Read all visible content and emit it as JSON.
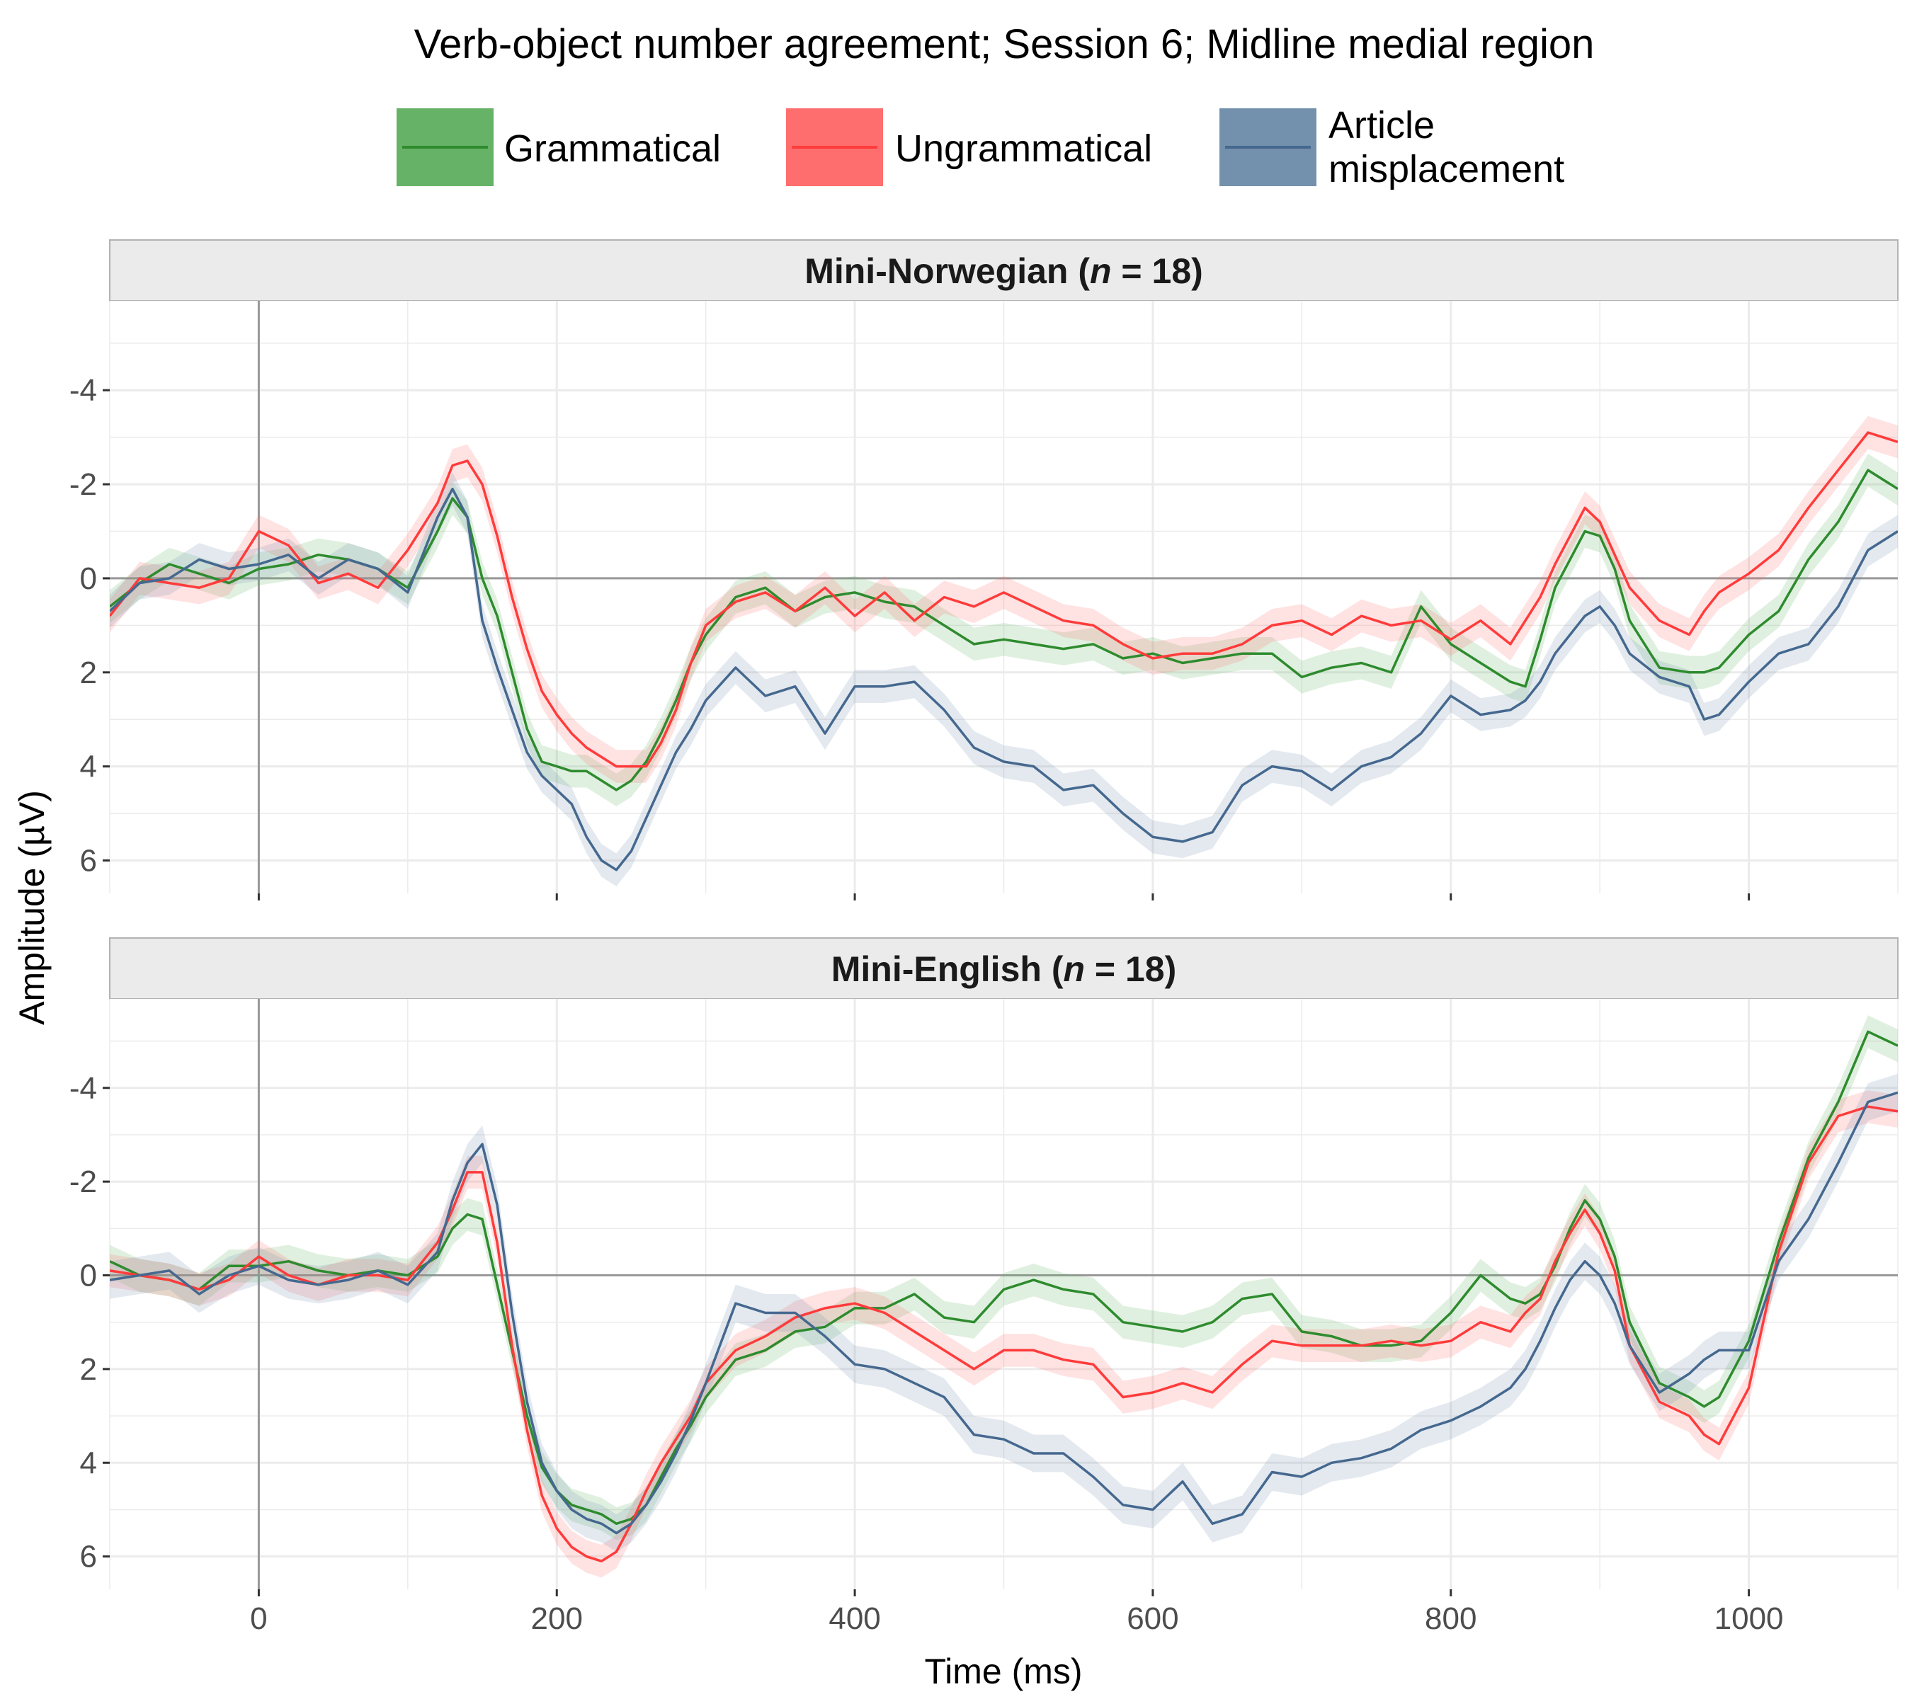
{
  "chart_data": {
    "type": "line",
    "title": "Verb-object number agreement; Session 6; Midline medial region",
    "xlabel": "Time (ms)",
    "ylabel": "Amplitude (µV)",
    "xlim": [
      -100,
      1100
    ],
    "ylim_display_top_to_bottom": [
      -5.9,
      6.7
    ],
    "y_axis_reversed": true,
    "x_ticks": [
      0,
      200,
      400,
      600,
      800,
      1000
    ],
    "y_ticks": [
      -4,
      -2,
      0,
      2,
      4,
      6
    ],
    "y_tick_labels": [
      "-4",
      "-2",
      "0",
      "2",
      "4",
      "6"
    ],
    "grid": true,
    "legend_position": "top",
    "legend": [
      {
        "key": "grammatical",
        "label": "Grammatical",
        "color": "#2e8b2e",
        "fill": "#66b266"
      },
      {
        "key": "ungrammatical",
        "label": "Ungrammatical",
        "color": "#ff3b3b",
        "fill": "#ff6e6e"
      },
      {
        "key": "article",
        "label": "Article misplacement",
        "label_lines": [
          "Article",
          "misplacement"
        ],
        "color": "#45688f",
        "fill": "#7390ad"
      }
    ],
    "x": [
      -100,
      -80,
      -60,
      -40,
      -20,
      0,
      20,
      40,
      60,
      80,
      100,
      120,
      130,
      140,
      150,
      160,
      170,
      180,
      190,
      200,
      210,
      220,
      230,
      240,
      250,
      260,
      270,
      280,
      290,
      300,
      320,
      340,
      360,
      380,
      400,
      420,
      440,
      460,
      480,
      500,
      520,
      540,
      560,
      580,
      600,
      620,
      640,
      660,
      680,
      700,
      720,
      740,
      760,
      780,
      800,
      820,
      840,
      850,
      860,
      870,
      880,
      890,
      900,
      910,
      920,
      940,
      960,
      970,
      980,
      1000,
      1020,
      1040,
      1060,
      1080,
      1100
    ],
    "panels": [
      {
        "strip_prefix": "Mini-Norwegian (",
        "strip_n": "n",
        "strip_suffix": " = 18)",
        "series": [
          {
            "key": "grammatical",
            "name": "Grammatical",
            "band": 0.35,
            "values": [
              0.6,
              0.1,
              -0.3,
              -0.1,
              0.1,
              -0.2,
              -0.3,
              -0.5,
              -0.4,
              -0.2,
              0.2,
              -1.0,
              -1.7,
              -1.3,
              0.0,
              0.8,
              2.0,
              3.2,
              3.9,
              4.0,
              4.1,
              4.1,
              4.3,
              4.5,
              4.3,
              3.9,
              3.3,
              2.6,
              1.8,
              1.2,
              0.4,
              0.2,
              0.7,
              0.4,
              0.3,
              0.5,
              0.6,
              1.0,
              1.4,
              1.3,
              1.4,
              1.5,
              1.4,
              1.7,
              1.6,
              1.8,
              1.7,
              1.6,
              1.6,
              2.1,
              1.9,
              1.8,
              2.0,
              0.6,
              1.4,
              1.8,
              2.2,
              2.3,
              1.3,
              0.2,
              -0.4,
              -1.0,
              -0.9,
              -0.2,
              0.9,
              1.9,
              2.0,
              2.0,
              1.9,
              1.2,
              0.7,
              -0.4,
              -1.2,
              -2.3,
              -1.9
            ]
          },
          {
            "key": "ungrammatical",
            "name": "Ungrammatical",
            "band": 0.35,
            "values": [
              0.8,
              0.0,
              0.1,
              0.2,
              0.0,
              -1.0,
              -0.7,
              0.1,
              -0.1,
              0.2,
              -0.6,
              -1.6,
              -2.4,
              -2.5,
              -2.0,
              -0.9,
              0.4,
              1.5,
              2.4,
              2.9,
              3.3,
              3.6,
              3.8,
              4.0,
              4.0,
              4.0,
              3.5,
              2.8,
              1.8,
              1.0,
              0.5,
              0.3,
              0.7,
              0.2,
              0.8,
              0.3,
              0.9,
              0.4,
              0.6,
              0.3,
              0.6,
              0.9,
              1.0,
              1.4,
              1.7,
              1.6,
              1.6,
              1.4,
              1.0,
              0.9,
              1.2,
              0.8,
              1.0,
              0.9,
              1.3,
              0.9,
              1.4,
              0.9,
              0.4,
              -0.3,
              -0.9,
              -1.5,
              -1.2,
              -0.5,
              0.2,
              0.9,
              1.2,
              0.7,
              0.3,
              -0.1,
              -0.6,
              -1.5,
              -2.3,
              -3.1,
              -2.9
            ]
          },
          {
            "key": "article",
            "name": "Article misplacement",
            "band": 0.35,
            "values": [
              0.7,
              0.1,
              0.0,
              -0.4,
              -0.2,
              -0.3,
              -0.5,
              0.0,
              -0.4,
              -0.2,
              0.3,
              -1.3,
              -1.9,
              -1.3,
              0.9,
              1.9,
              2.8,
              3.7,
              4.2,
              4.5,
              4.8,
              5.5,
              6.0,
              6.2,
              5.8,
              5.1,
              4.4,
              3.7,
              3.2,
              2.6,
              1.9,
              2.5,
              2.3,
              3.3,
              2.3,
              2.3,
              2.2,
              2.8,
              3.6,
              3.9,
              4.0,
              4.5,
              4.4,
              5.0,
              5.5,
              5.6,
              5.4,
              4.4,
              4.0,
              4.1,
              4.5,
              4.0,
              3.8,
              3.3,
              2.5,
              2.9,
              2.8,
              2.6,
              2.2,
              1.6,
              1.2,
              0.8,
              0.6,
              1.0,
              1.6,
              2.1,
              2.3,
              3.0,
              2.9,
              2.2,
              1.6,
              1.4,
              0.6,
              -0.6,
              -1.0
            ]
          }
        ]
      },
      {
        "strip_prefix": "Mini-English (",
        "strip_n": "n",
        "strip_suffix": " = 18)",
        "series": [
          {
            "key": "grammatical",
            "name": "Grammatical",
            "band": 0.35,
            "values": [
              -0.3,
              0.0,
              0.1,
              0.3,
              -0.2,
              -0.2,
              -0.3,
              -0.1,
              0.0,
              -0.1,
              0.0,
              -0.4,
              -1.0,
              -1.3,
              -1.2,
              0.2,
              1.6,
              3.0,
              4.1,
              4.6,
              4.9,
              5.0,
              5.1,
              5.3,
              5.2,
              4.9,
              4.3,
              3.7,
              3.2,
              2.6,
              1.8,
              1.6,
              1.2,
              1.1,
              0.7,
              0.7,
              0.4,
              0.9,
              1.0,
              0.3,
              0.1,
              0.3,
              0.4,
              1.0,
              1.1,
              1.2,
              1.0,
              0.5,
              0.4,
              1.2,
              1.3,
              1.5,
              1.5,
              1.4,
              0.8,
              0.0,
              0.5,
              0.6,
              0.4,
              -0.2,
              -1.0,
              -1.6,
              -1.2,
              -0.4,
              1.0,
              2.3,
              2.6,
              2.8,
              2.6,
              1.4,
              -0.7,
              -2.5,
              -3.7,
              -5.2,
              -4.9
            ]
          },
          {
            "key": "ungrammatical",
            "name": "Ungrammatical",
            "band": 0.35,
            "values": [
              -0.1,
              0.0,
              0.1,
              0.3,
              0.1,
              -0.4,
              0.0,
              0.2,
              0.0,
              0.0,
              0.1,
              -0.7,
              -1.4,
              -2.2,
              -2.2,
              -0.7,
              1.5,
              3.3,
              4.7,
              5.4,
              5.8,
              6.0,
              6.1,
              5.9,
              5.3,
              4.6,
              4.0,
              3.5,
              3.0,
              2.3,
              1.6,
              1.3,
              0.9,
              0.7,
              0.6,
              0.8,
              1.2,
              1.6,
              2.0,
              1.6,
              1.6,
              1.8,
              1.9,
              2.6,
              2.5,
              2.3,
              2.5,
              1.9,
              1.4,
              1.5,
              1.5,
              1.5,
              1.4,
              1.5,
              1.4,
              1.0,
              1.2,
              0.8,
              0.5,
              -0.3,
              -0.9,
              -1.4,
              -0.9,
              -0.1,
              1.5,
              2.7,
              3.0,
              3.4,
              3.6,
              2.4,
              -0.5,
              -2.4,
              -3.4,
              -3.6,
              -3.5
            ]
          },
          {
            "key": "article",
            "name": "Article misplacement",
            "band": 0.4,
            "values": [
              0.1,
              0.0,
              -0.1,
              0.4,
              0.0,
              -0.2,
              0.1,
              0.2,
              0.1,
              -0.1,
              0.2,
              -0.5,
              -1.6,
              -2.4,
              -2.8,
              -1.5,
              0.8,
              2.7,
              4.0,
              4.6,
              5.0,
              5.2,
              5.3,
              5.5,
              5.3,
              4.9,
              4.4,
              3.8,
              3.1,
              2.3,
              0.6,
              0.8,
              0.8,
              1.3,
              1.9,
              2.0,
              2.3,
              2.6,
              3.4,
              3.5,
              3.8,
              3.8,
              4.3,
              4.9,
              5.0,
              4.4,
              5.3,
              5.1,
              4.2,
              4.3,
              4.0,
              3.9,
              3.7,
              3.3,
              3.1,
              2.8,
              2.4,
              2.0,
              1.4,
              0.7,
              0.1,
              -0.3,
              0.0,
              0.6,
              1.5,
              2.5,
              2.1,
              1.8,
              1.6,
              1.6,
              -0.3,
              -1.2,
              -2.4,
              -3.7,
              -3.9
            ]
          }
        ]
      }
    ]
  }
}
